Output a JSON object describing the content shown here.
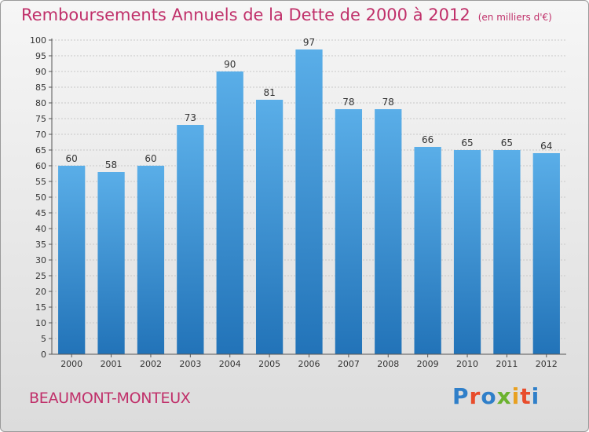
{
  "header": {
    "title": "Remboursements Annuels de la Dette de 2000 à 2012",
    "unit": "(en milliers d'€)"
  },
  "footer": {
    "city": "BEAUMONT-MONTEUX",
    "logo": "Proxiti"
  },
  "colors": {
    "title": "#c0306a",
    "bar_top": "#5aaee8",
    "bar_bottom": "#2273b8",
    "logo_letters": [
      "#2f7fc9",
      "#e84c2b",
      "#2f7fc9",
      "#6bb22f",
      "#e8a020",
      "#e84c2b",
      "#2f7fc9"
    ]
  },
  "chart_data": {
    "type": "bar",
    "categories": [
      "2000",
      "2001",
      "2002",
      "2003",
      "2004",
      "2005",
      "2006",
      "2007",
      "2008",
      "2009",
      "2010",
      "2011",
      "2012"
    ],
    "values": [
      60,
      58,
      60,
      73,
      90,
      81,
      97,
      78,
      78,
      66,
      65,
      65,
      64
    ],
    "title": "Remboursements Annuels de la Dette de 2000 à 2012",
    "xlabel": "",
    "ylabel": "",
    "ylim": [
      0,
      100
    ],
    "ytick_step": 5,
    "grid": true,
    "legend": "none"
  }
}
